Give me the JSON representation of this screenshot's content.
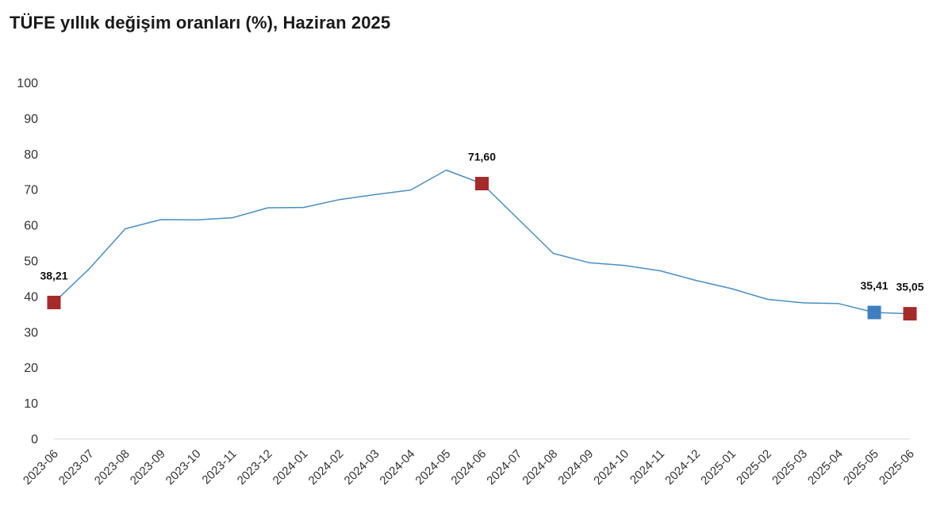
{
  "chart_data": {
    "type": "line",
    "title": "TÜFE yıllık değişim oranları (%), Haziran 2025",
    "xlabel": "",
    "ylabel": "",
    "ylim": [
      0,
      100
    ],
    "yticks": [
      0,
      10,
      20,
      30,
      40,
      50,
      60,
      70,
      80,
      90,
      100
    ],
    "grid": false,
    "categories": [
      "2023-06",
      "2023-07",
      "2023-08",
      "2023-09",
      "2023-10",
      "2023-11",
      "2023-12",
      "2024-01",
      "2024-02",
      "2024-03",
      "2024-04",
      "2024-05",
      "2024-06",
      "2024-07",
      "2024-08",
      "2024-09",
      "2024-10",
      "2024-11",
      "2024-12",
      "2025-01",
      "2025-02",
      "2025-03",
      "2025-04",
      "2025-05",
      "2025-06"
    ],
    "series": [
      {
        "name": "TÜFE yıllık değişim (%)",
        "color": "#4a8fc0",
        "values": [
          38.21,
          47.8,
          58.9,
          61.5,
          61.4,
          62.0,
          64.8,
          64.9,
          67.1,
          68.5,
          69.8,
          75.4,
          71.6,
          61.8,
          52.0,
          49.4,
          48.6,
          47.1,
          44.4,
          42.1,
          39.1,
          38.1,
          37.9,
          35.41,
          35.05
        ]
      }
    ],
    "highlights": [
      {
        "index": 0,
        "label": "38,21",
        "color": "#a52a2a"
      },
      {
        "index": 12,
        "label": "71,60",
        "color": "#a52a2a"
      },
      {
        "index": 23,
        "label": "35,41",
        "color": "#3d7fbf"
      },
      {
        "index": 24,
        "label": "35,05",
        "color": "#a52a2a"
      }
    ]
  }
}
